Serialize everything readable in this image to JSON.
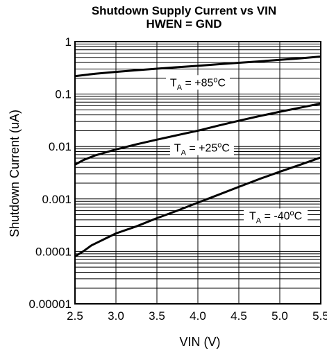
{
  "chart_data": {
    "type": "line",
    "title": "Shutdown Supply Current vs VIN",
    "subtitle": "HWEN = GND",
    "xlabel": "VIN (V)",
    "ylabel": "Shutdown Current (uA)",
    "xlim": [
      2.5,
      5.5
    ],
    "ylim": [
      1e-05,
      1
    ],
    "yscale": "log",
    "grid": true,
    "x_ticks": [
      "2.5",
      "3.0",
      "3.5",
      "4.0",
      "4.5",
      "5.0",
      "5.5"
    ],
    "y_ticks": [
      "0.00001",
      "0.0001",
      "0.001",
      "0.01",
      "0.1",
      "1"
    ],
    "series": [
      {
        "name": "TA = +85oC",
        "label_parts": {
          "main": "T",
          "sub": "A",
          "pre": " = +85",
          "sup": "o",
          "post": "C"
        },
        "label_at": [
          4.0,
          0.15
        ],
        "x": [
          2.5,
          2.75,
          3.0,
          3.25,
          3.5,
          3.75,
          4.0,
          4.25,
          4.5,
          4.75,
          5.0,
          5.25,
          5.5
        ],
        "y": [
          0.22,
          0.245,
          0.265,
          0.285,
          0.305,
          0.325,
          0.345,
          0.37,
          0.395,
          0.42,
          0.45,
          0.48,
          0.52
        ]
      },
      {
        "name": "TA = +25oC",
        "label_parts": {
          "main": "T",
          "sub": "A",
          "pre": " = +25",
          "sup": "o",
          "post": "C"
        },
        "label_at": [
          4.05,
          0.0085
        ],
        "x": [
          2.5,
          2.6,
          2.75,
          3.0,
          3.25,
          3.5,
          3.75,
          4.0,
          4.25,
          4.5,
          4.75,
          5.0,
          5.25,
          5.5
        ],
        "y": [
          0.0045,
          0.0055,
          0.0068,
          0.0088,
          0.011,
          0.0135,
          0.0165,
          0.02,
          0.025,
          0.031,
          0.038,
          0.046,
          0.055,
          0.066
        ]
      },
      {
        "name": "TA = -40oC",
        "label_parts": {
          "main": "T",
          "sub": "A",
          "pre": " = -40",
          "sup": "o",
          "post": "C"
        },
        "label_at": [
          4.95,
          0.00043
        ],
        "x": [
          2.5,
          2.6,
          2.7,
          3.0,
          3.25,
          3.5,
          3.75,
          4.0,
          4.25,
          4.5,
          4.75,
          5.0,
          5.25,
          5.5
        ],
        "y": [
          8e-05,
          0.0001,
          0.00013,
          0.00022,
          0.0003,
          0.00043,
          0.0006,
          0.00085,
          0.0012,
          0.0017,
          0.0024,
          0.0033,
          0.0045,
          0.0062
        ]
      }
    ]
  }
}
